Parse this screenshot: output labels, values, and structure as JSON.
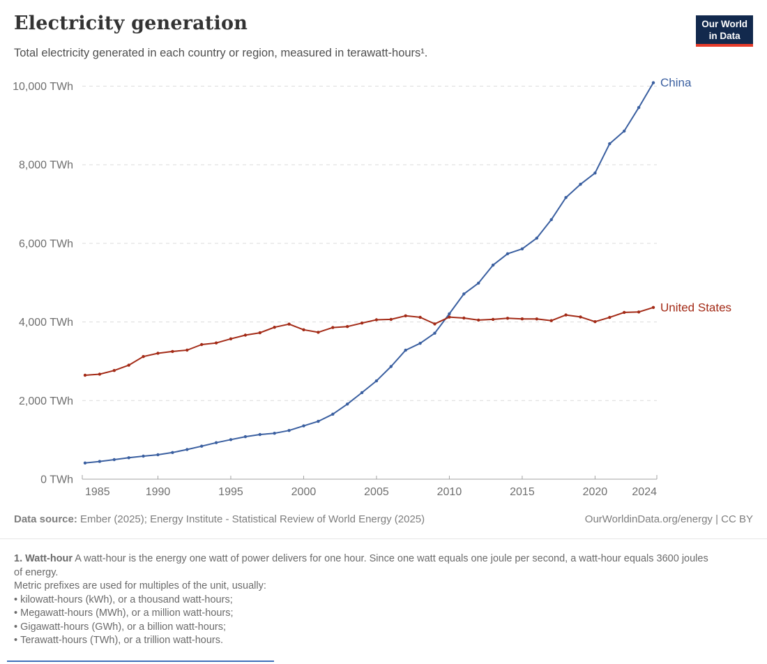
{
  "header": {
    "title": "Electricity generation",
    "subtitle": "Total electricity generated in each country or region, measured in terawatt-hours¹.",
    "logo": {
      "line1": "Our World",
      "line2": "in Data",
      "bg_color": "#12294D",
      "bar_color": "#E63B2A"
    }
  },
  "footer": {
    "source_label": "Data source:",
    "source_text": " Ember (2025); Energy Institute - Statistical Review of World Energy (2025)",
    "credit": "OurWorldinData.org/energy | CC BY"
  },
  "footnote": {
    "lead": "1. Watt-hour",
    "body": " A watt-hour is the energy one watt of power delivers for one hour. Since one watt equals one joule per second, a watt-hour equals 3600 joules of energy.",
    "metric_line": "Metric prefixes are used for multiples of the unit, usually:",
    "bullets": [
      "kilowatt-hours (kWh), or a thousand watt-hours;",
      "Megawatt-hours (MWh), or a million watt-hours;",
      "Gigawatt-hours (GWh), or a billion watt-hours;",
      "Terawatt-hours (TWh), or a trillion watt-hours."
    ]
  },
  "chart_data": {
    "type": "line",
    "title": "Electricity generation",
    "unit": "TWh",
    "grid": "horizontal-dashed",
    "legend": "end-of-line-labels",
    "ylim": [
      0,
      10000
    ],
    "x": [
      1985,
      1986,
      1987,
      1988,
      1989,
      1990,
      1991,
      1992,
      1993,
      1994,
      1995,
      1996,
      1997,
      1998,
      1999,
      2000,
      2001,
      2002,
      2003,
      2004,
      2005,
      2006,
      2007,
      2008,
      2009,
      2010,
      2011,
      2012,
      2013,
      2014,
      2015,
      2016,
      2017,
      2018,
      2019,
      2020,
      2021,
      2022,
      2023,
      2024
    ],
    "xticks": [
      1985,
      1990,
      1995,
      2000,
      2005,
      2010,
      2015,
      2020,
      2024
    ],
    "yticks": [
      {
        "value": 0,
        "label": "0 TWh"
      },
      {
        "value": 2000,
        "label": "2,000 TWh"
      },
      {
        "value": 4000,
        "label": "4,000 TWh"
      },
      {
        "value": 6000,
        "label": "6,000 TWh"
      },
      {
        "value": 8000,
        "label": "8,000 TWh"
      },
      {
        "value": 10000,
        "label": "10,000 TWh"
      }
    ],
    "series": [
      {
        "name": "China",
        "color": "#3A5FA0",
        "values": [
          411,
          450,
          497,
          545,
          585,
          621,
          678,
          754,
          839,
          928,
          1007,
          1081,
          1136,
          1167,
          1239,
          1356,
          1472,
          1654,
          1911,
          2203,
          2500,
          2866,
          3282,
          3457,
          3715,
          4207,
          4713,
          4988,
          5447,
          5735,
          5860,
          6133,
          6604,
          7166,
          7503,
          7789,
          8534,
          8858,
          9456,
          10087
        ]
      },
      {
        "name": "United States",
        "color": "#A32A16",
        "values": [
          2645,
          2670,
          2765,
          2900,
          3120,
          3203,
          3250,
          3283,
          3425,
          3465,
          3570,
          3665,
          3725,
          3865,
          3945,
          3802,
          3737,
          3858,
          3883,
          3971,
          4055,
          4065,
          4157,
          4119,
          3950,
          4125,
          4100,
          4048,
          4066,
          4094,
          4078,
          4077,
          4034,
          4178,
          4128,
          4007,
          4116,
          4243,
          4254,
          4369
        ]
      }
    ],
    "axis_colors": {
      "gridline": "#dcdcdc",
      "axis": "#a3a3a3",
      "tick_label": "#6e6e6e"
    }
  }
}
